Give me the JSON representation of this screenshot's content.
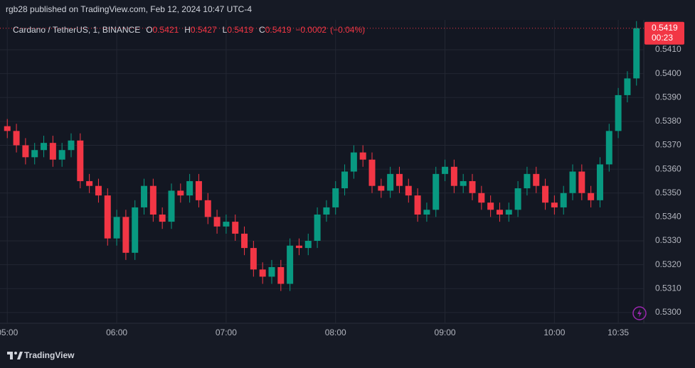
{
  "chart_data": {
    "type": "candlestick",
    "publisher_line": "rgb28 published on TradingView.com, Feb 12, 2024 10:47 UTC-4",
    "symbol": "Cardano / TetherUS, 1, BINANCE",
    "legend": {
      "o_label": "O",
      "o": 0.5421,
      "h_label": "H",
      "h": 0.5427,
      "l_label": "L",
      "l": 0.5419,
      "c_label": "C",
      "c": 0.5419,
      "change": "−0.0002",
      "change_pct": "(−0.04%)"
    },
    "last_price": 0.5419,
    "countdown": "00:23",
    "brand": "TradingView",
    "up_color": "#089981",
    "down_color": "#f23645",
    "grid": true,
    "x": [
      "05:00",
      "05:05",
      "05:10",
      "05:15",
      "05:20",
      "05:25",
      "05:30",
      "05:35",
      "05:40",
      "05:45",
      "05:50",
      "05:55",
      "06:00",
      "06:05",
      "06:10",
      "06:15",
      "06:20",
      "06:25",
      "06:30",
      "06:35",
      "06:40",
      "06:45",
      "06:50",
      "06:55",
      "07:00",
      "07:05",
      "07:10",
      "07:15",
      "07:20",
      "07:25",
      "07:30",
      "07:35",
      "07:40",
      "07:45",
      "07:50",
      "07:55",
      "08:00",
      "08:05",
      "08:10",
      "08:15",
      "08:20",
      "08:25",
      "08:30",
      "08:35",
      "08:40",
      "08:45",
      "08:50",
      "08:55",
      "09:00",
      "09:05",
      "09:10",
      "09:15",
      "09:20",
      "09:25",
      "09:30",
      "09:35",
      "09:40",
      "09:45",
      "09:50",
      "09:55",
      "10:00",
      "10:05",
      "10:10",
      "10:15",
      "10:20",
      "10:25",
      "10:30",
      "10:35",
      "10:40",
      "10:45"
    ],
    "open": [
      0.5378,
      0.5376,
      0.537,
      0.5365,
      0.5368,
      0.5371,
      0.5364,
      0.5368,
      0.5372,
      0.5355,
      0.5353,
      0.5349,
      0.5331,
      0.534,
      0.5325,
      0.5344,
      0.5353,
      0.5341,
      0.5338,
      0.5351,
      0.5349,
      0.5355,
      0.5347,
      0.534,
      0.5336,
      0.5338,
      0.5333,
      0.5327,
      0.5318,
      0.5315,
      0.5319,
      0.5312,
      0.5328,
      0.5327,
      0.533,
      0.5341,
      0.5344,
      0.5352,
      0.5359,
      0.5367,
      0.5364,
      0.5353,
      0.5351,
      0.5358,
      0.5353,
      0.5349,
      0.5341,
      0.5343,
      0.5358,
      0.5361,
      0.5353,
      0.5355,
      0.535,
      0.5346,
      0.5343,
      0.5341,
      0.5343,
      0.5352,
      0.5358,
      0.5353,
      0.5346,
      0.5344,
      0.535,
      0.5359,
      0.535,
      0.5347,
      0.5362,
      0.5376,
      0.5391,
      0.5398
    ],
    "high": [
      0.5381,
      0.5379,
      0.5373,
      0.5371,
      0.5374,
      0.5374,
      0.5371,
      0.5375,
      0.5375,
      0.5358,
      0.5356,
      0.5352,
      0.5343,
      0.5343,
      0.5347,
      0.5356,
      0.5356,
      0.5344,
      0.5354,
      0.5354,
      0.5358,
      0.5358,
      0.535,
      0.5343,
      0.5341,
      0.5341,
      0.5336,
      0.533,
      0.5321,
      0.5322,
      0.5322,
      0.5331,
      0.5331,
      0.5333,
      0.5344,
      0.5347,
      0.5355,
      0.5362,
      0.537,
      0.537,
      0.5367,
      0.5356,
      0.5361,
      0.5361,
      0.5356,
      0.5352,
      0.5346,
      0.5361,
      0.5364,
      0.5364,
      0.5358,
      0.5358,
      0.5353,
      0.5349,
      0.5346,
      0.5346,
      0.5355,
      0.5361,
      0.5361,
      0.5356,
      0.5349,
      0.5353,
      0.5362,
      0.5362,
      0.5353,
      0.5365,
      0.5379,
      0.5394,
      0.5401,
      0.5422
    ],
    "low": [
      0.5373,
      0.5367,
      0.5362,
      0.5362,
      0.5365,
      0.5361,
      0.5361,
      0.5365,
      0.5352,
      0.535,
      0.5346,
      0.5328,
      0.5328,
      0.5322,
      0.5322,
      0.5341,
      0.5338,
      0.5335,
      0.5335,
      0.5346,
      0.5346,
      0.5344,
      0.5337,
      0.5333,
      0.5333,
      0.533,
      0.5324,
      0.5315,
      0.5312,
      0.5312,
      0.5309,
      0.5309,
      0.5324,
      0.5324,
      0.5327,
      0.5338,
      0.5341,
      0.5349,
      0.5356,
      0.5361,
      0.535,
      0.5348,
      0.5348,
      0.535,
      0.5346,
      0.5338,
      0.5338,
      0.534,
      0.5355,
      0.535,
      0.535,
      0.5347,
      0.5343,
      0.534,
      0.5338,
      0.5338,
      0.534,
      0.5349,
      0.535,
      0.5343,
      0.5341,
      0.5341,
      0.5347,
      0.5347,
      0.5344,
      0.5344,
      0.5359,
      0.5373,
      0.5388,
      0.5395
    ],
    "close": [
      0.5376,
      0.537,
      0.5365,
      0.5368,
      0.5371,
      0.5364,
      0.5368,
      0.5372,
      0.5355,
      0.5353,
      0.5349,
      0.5331,
      0.534,
      0.5325,
      0.5344,
      0.5353,
      0.5341,
      0.5338,
      0.5351,
      0.5349,
      0.5355,
      0.5347,
      0.534,
      0.5336,
      0.5338,
      0.5333,
      0.5327,
      0.5318,
      0.5315,
      0.5319,
      0.5312,
      0.5328,
      0.5327,
      0.533,
      0.5341,
      0.5344,
      0.5352,
      0.5359,
      0.5367,
      0.5364,
      0.5353,
      0.5351,
      0.5358,
      0.5353,
      0.5349,
      0.5341,
      0.5343,
      0.5358,
      0.5361,
      0.5353,
      0.5355,
      0.535,
      0.5346,
      0.5343,
      0.5341,
      0.5343,
      0.5352,
      0.5358,
      0.5353,
      0.5346,
      0.5344,
      0.535,
      0.5359,
      0.535,
      0.5347,
      0.5362,
      0.5376,
      0.5391,
      0.5398,
      0.5419
    ],
    "xlim": [
      "04:56",
      "10:49"
    ],
    "xticks": [
      "05:00",
      "06:00",
      "07:00",
      "08:00",
      "09:00",
      "10:00",
      "10:35"
    ],
    "ylim": [
      0.52955,
      0.54225
    ],
    "yticks": [
      {
        "value": 0.53,
        "label": "0.5300"
      },
      {
        "value": 0.531,
        "label": "0.5310"
      },
      {
        "value": 0.532,
        "label": "0.5320"
      },
      {
        "value": 0.533,
        "label": "0.5330"
      },
      {
        "value": 0.534,
        "label": "0.5340"
      },
      {
        "value": 0.535,
        "label": "0.5350"
      },
      {
        "value": 0.536,
        "label": "0.5360"
      },
      {
        "value": 0.537,
        "label": "0.5370"
      },
      {
        "value": 0.538,
        "label": "0.5380"
      },
      {
        "value": 0.539,
        "label": "0.5390"
      },
      {
        "value": 0.54,
        "label": "0.5400"
      },
      {
        "value": 0.541,
        "label": "0.5410"
      }
    ]
  }
}
